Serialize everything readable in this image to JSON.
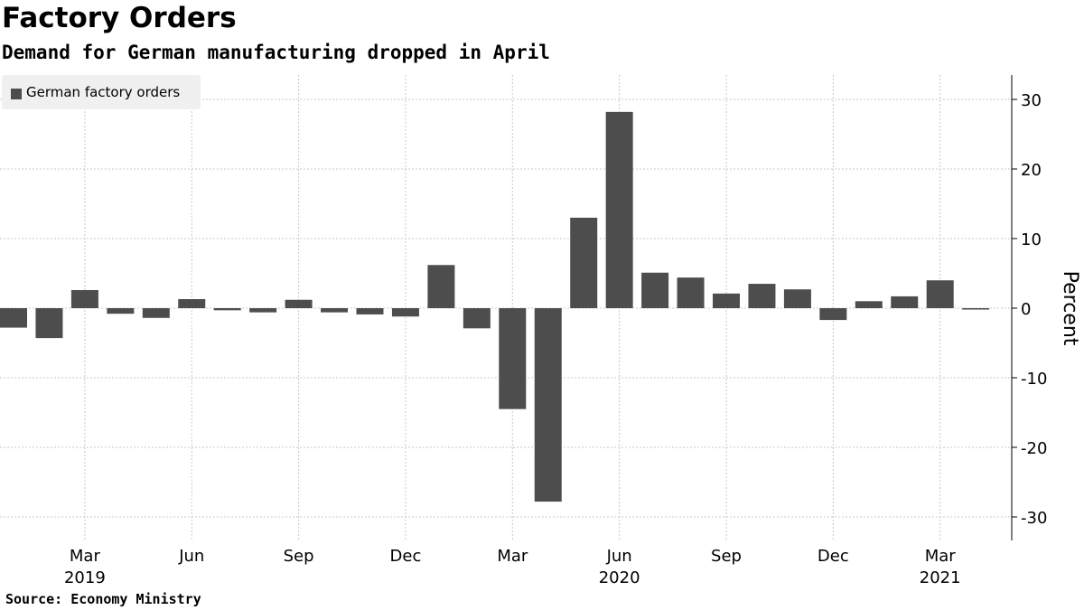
{
  "chart_data": {
    "type": "bar",
    "title": "Factory Orders",
    "subtitle": "Demand for German manufacturing dropped in April",
    "source": "Source: Economy Ministry",
    "ylabel": "Percent",
    "ylim": [
      -34,
      34
    ],
    "yticks": [
      30,
      20,
      10,
      0,
      -10,
      -20,
      -30
    ],
    "grid": true,
    "legend": {
      "position": "top-left",
      "entries": [
        "German factory orders"
      ]
    },
    "bar_color": "#4d4d4d",
    "categories": [
      "Jan 2019",
      "Feb 2019",
      "Mar 2019",
      "Apr 2019",
      "May 2019",
      "Jun 2019",
      "Jul 2019",
      "Aug 2019",
      "Sep 2019",
      "Oct 2019",
      "Nov 2019",
      "Dec 2019",
      "Jan 2020",
      "Feb 2020",
      "Mar 2020",
      "Apr 2020",
      "May 2020",
      "Jun 2020",
      "Jul 2020",
      "Aug 2020",
      "Sep 2020",
      "Oct 2020",
      "Nov 2020",
      "Dec 2020",
      "Jan 2021",
      "Feb 2021",
      "Mar 2021",
      "Apr 2021"
    ],
    "values": [
      -2.8,
      -4.3,
      2.6,
      -0.8,
      -1.4,
      1.3,
      -0.3,
      -0.6,
      1.2,
      -0.6,
      -0.9,
      -1.2,
      6.2,
      -2.9,
      -14.5,
      -27.8,
      13.0,
      28.2,
      5.1,
      4.4,
      2.1,
      3.5,
      2.7,
      -1.7,
      1.0,
      1.7,
      4.0,
      -0.2
    ],
    "xticks": [
      {
        "index": 2,
        "label": "Mar",
        "year": "2019"
      },
      {
        "index": 5,
        "label": "Jun",
        "year": ""
      },
      {
        "index": 8,
        "label": "Sep",
        "year": ""
      },
      {
        "index": 11,
        "label": "Dec",
        "year": ""
      },
      {
        "index": 14,
        "label": "Mar",
        "year": ""
      },
      {
        "index": 17,
        "label": "Jun",
        "year": "2020"
      },
      {
        "index": 20,
        "label": "Sep",
        "year": ""
      },
      {
        "index": 23,
        "label": "Dec",
        "year": ""
      },
      {
        "index": 26,
        "label": "Mar",
        "year": "2021"
      }
    ]
  }
}
